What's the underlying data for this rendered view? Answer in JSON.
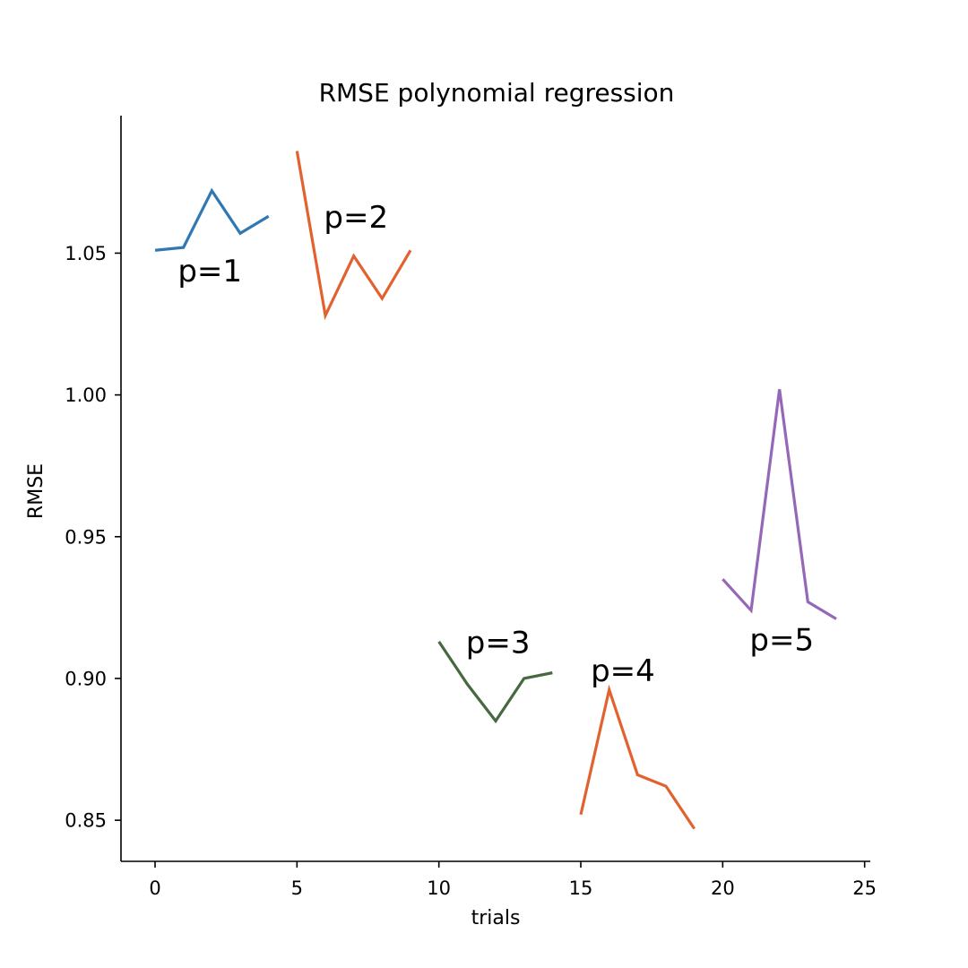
{
  "chart_data": {
    "type": "line",
    "title": "RMSE polynomial regression",
    "xlabel": "trials",
    "ylabel": "RMSE",
    "xlim": [
      -1.2,
      25.2
    ],
    "ylim": [
      0.8355,
      1.0985
    ],
    "xticks": [
      0,
      5,
      10,
      15,
      20,
      25
    ],
    "yticks": [
      0.85,
      0.9,
      0.95,
      1.0,
      1.05
    ],
    "ytick_format": 2,
    "grid": false,
    "legend": "none",
    "series": [
      {
        "color": "#2f78b4",
        "x": [
          0,
          1,
          2,
          3,
          4
        ],
        "y": [
          1.051,
          1.052,
          1.072,
          1.057,
          1.063
        ]
      },
      {
        "color": "#e2622f",
        "x": [
          5,
          6,
          7,
          8,
          9
        ],
        "y": [
          1.086,
          1.028,
          1.049,
          1.034,
          1.051
        ]
      },
      {
        "color": "#46693f",
        "x": [
          10,
          11,
          12,
          13,
          14
        ],
        "y": [
          0.913,
          0.898,
          0.885,
          0.9,
          0.902
        ]
      },
      {
        "color": "#e2622f",
        "x": [
          15,
          16,
          17,
          18,
          19
        ],
        "y": [
          0.852,
          0.896,
          0.866,
          0.862,
          0.847
        ]
      },
      {
        "color": "#9567b9",
        "x": [
          20,
          21,
          22,
          23,
          24
        ],
        "y": [
          0.935,
          0.924,
          1.002,
          0.927,
          0.921
        ]
      }
    ],
    "annotations": [
      {
        "text": "p=1",
        "x": 0.8,
        "y": 1.04
      },
      {
        "text": "p=2",
        "x": 5.95,
        "y": 1.059
      },
      {
        "text": "p=3",
        "x": 10.95,
        "y": 0.909
      },
      {
        "text": "p=4",
        "x": 15.35,
        "y": 0.899
      },
      {
        "text": "p=5",
        "x": 20.95,
        "y": 0.91
      }
    ]
  }
}
